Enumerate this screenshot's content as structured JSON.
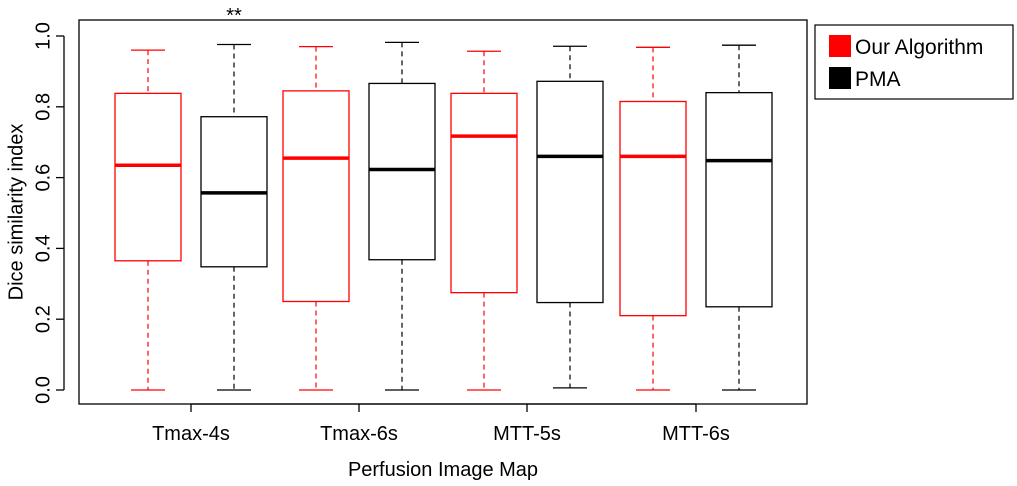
{
  "chart_data": {
    "type": "box",
    "xlabel": "Perfusion Image Map",
    "ylabel": "Dice similarity index",
    "ylim": [
      0,
      1
    ],
    "yticks": [
      0.0,
      0.2,
      0.4,
      0.6,
      0.8,
      1.0
    ],
    "ytick_labels": [
      "0.0",
      "0.2",
      "0.4",
      "0.6",
      "0.8",
      "1.0"
    ],
    "categories": [
      "Tmax-4s",
      "Tmax-6s",
      "MTT-5s",
      "MTT-6s"
    ],
    "legend_position": "top-right, outside plot",
    "significance": [
      {
        "category": "Tmax-4s",
        "label": "**",
        "color": "#e00000"
      }
    ],
    "series": [
      {
        "name": "Our Algorithm",
        "color": "#ff0000",
        "boxes": [
          {
            "min": 0.0,
            "q1": 0.365,
            "median": 0.635,
            "q3": 0.838,
            "max": 0.96
          },
          {
            "min": 0.0,
            "q1": 0.25,
            "median": 0.655,
            "q3": 0.845,
            "max": 0.97
          },
          {
            "min": 0.0,
            "q1": 0.275,
            "median": 0.717,
            "q3": 0.838,
            "max": 0.957
          },
          {
            "min": 0.0,
            "q1": 0.21,
            "median": 0.66,
            "q3": 0.815,
            "max": 0.968
          }
        ]
      },
      {
        "name": "PMA",
        "color": "#000000",
        "boxes": [
          {
            "min": 0.0,
            "q1": 0.348,
            "median": 0.557,
            "q3": 0.772,
            "max": 0.976
          },
          {
            "min": 0.0,
            "q1": 0.368,
            "median": 0.623,
            "q3": 0.866,
            "max": 0.982
          },
          {
            "min": 0.006,
            "q1": 0.247,
            "median": 0.66,
            "q3": 0.872,
            "max": 0.971
          },
          {
            "min": 0.0,
            "q1": 0.235,
            "median": 0.648,
            "q3": 0.84,
            "max": 0.974
          }
        ]
      }
    ]
  }
}
